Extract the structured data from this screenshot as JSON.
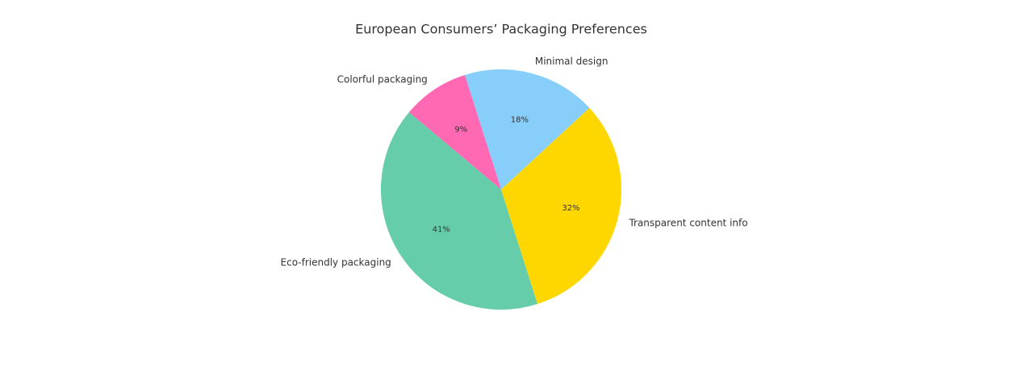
{
  "chart_data": {
    "type": "pie",
    "title": "European Consumers’ Packaging Preferences",
    "categories": [
      "Eco-friendly packaging",
      "Transparent content info",
      "Minimal design",
      "Colorful packaging"
    ],
    "values": [
      41,
      32,
      18,
      9
    ],
    "value_labels": [
      "41%",
      "32%",
      "18%",
      "9%"
    ],
    "colors": [
      "#66cdaa",
      "#ffd700",
      "#87cefa",
      "#ff69b4"
    ]
  }
}
